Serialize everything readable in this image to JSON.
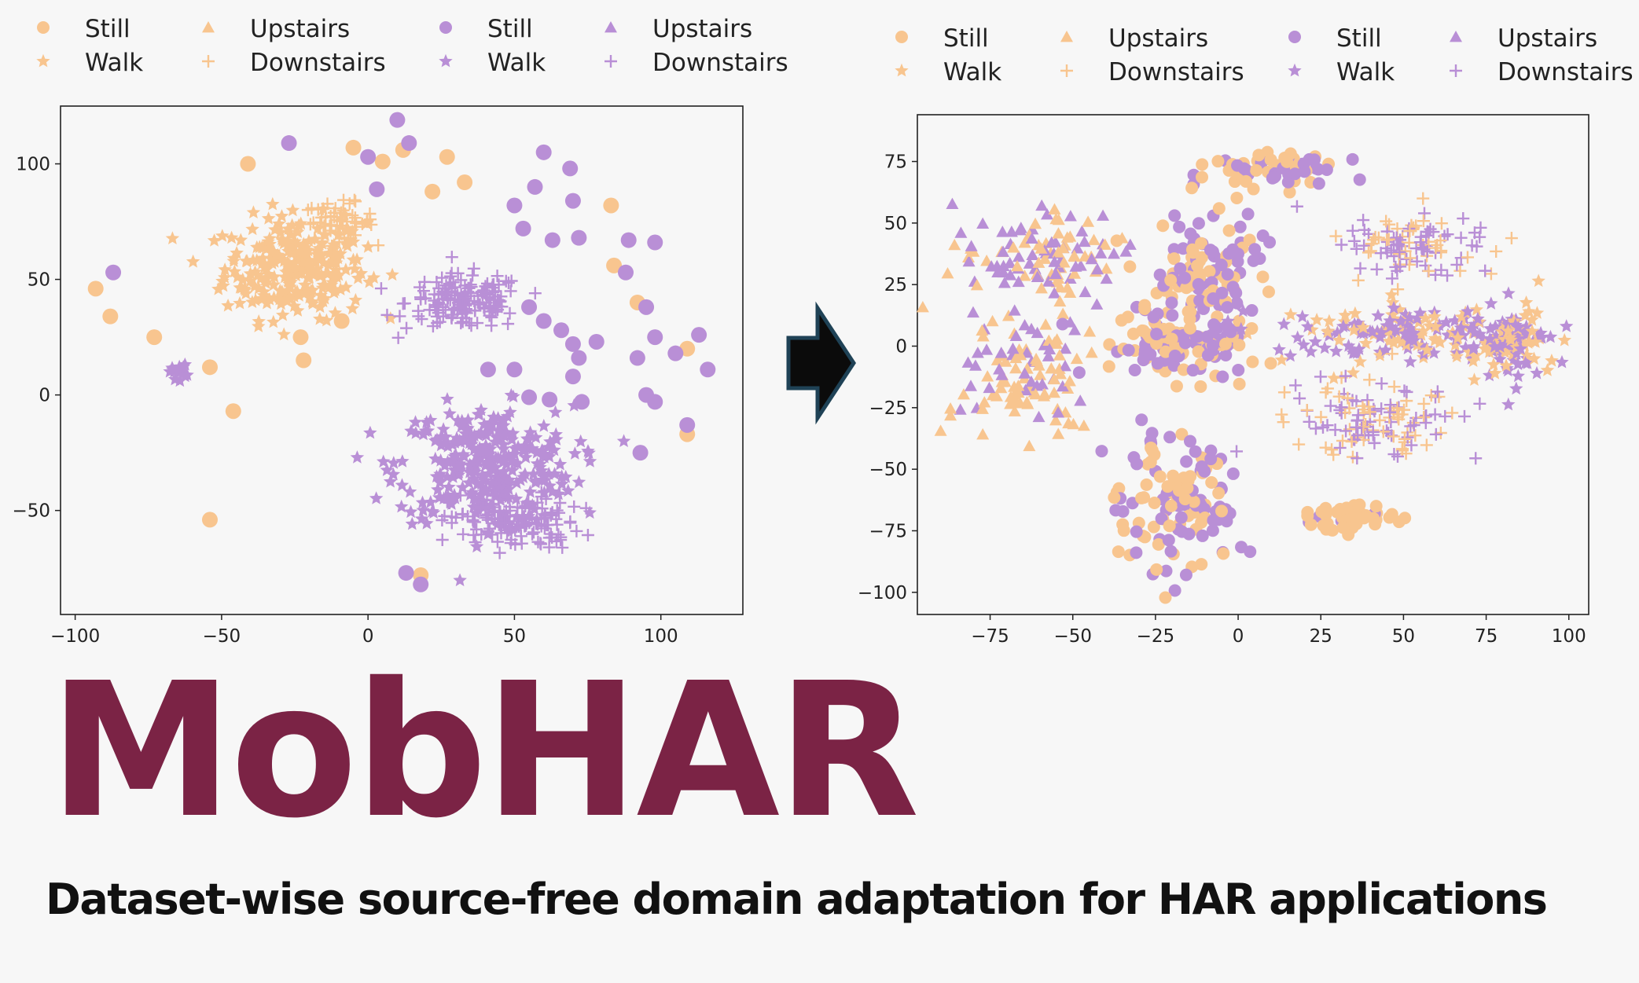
{
  "brand": {
    "title": "MobHAR",
    "subtitle": "Dataset-wise source-free domain adaptation for HAR applications",
    "title_color": "#7b2345",
    "arrow_icon": "right-arrow-icon"
  },
  "chart_data": [
    {
      "type": "scatter",
      "title": "",
      "xlabel": "",
      "ylabel": "",
      "xlim": [
        -105,
        128
      ],
      "ylim": [
        -95,
        125
      ],
      "xticks": [
        "−100",
        "−50",
        "0",
        "50",
        "100"
      ],
      "yticks": [
        "100",
        "50",
        "0",
        "−50"
      ],
      "xtick_values": [
        -100,
        -50,
        0,
        50,
        100
      ],
      "ytick_values": [
        100,
        50,
        0,
        -50
      ],
      "grid": false,
      "legend": {
        "placement": "top",
        "entries": [
          {
            "label": "Still",
            "marker": "circle",
            "color": "#f8c58f"
          },
          {
            "label": "Walk",
            "marker": "star",
            "color": "#f8c58f"
          },
          {
            "label": "Upstairs",
            "marker": "triangle",
            "color": "#f8c58f"
          },
          {
            "label": "Downstairs",
            "marker": "plus",
            "color": "#f8c58f"
          },
          {
            "label": "Still",
            "marker": "circle",
            "color": "#b98fd6"
          },
          {
            "label": "Walk",
            "marker": "star",
            "color": "#b98fd6"
          },
          {
            "label": "Upstairs",
            "marker": "triangle",
            "color": "#b98fd6"
          },
          {
            "label": "Downstairs",
            "marker": "plus",
            "color": "#b98fd6"
          }
        ]
      },
      "clusters": [
        {
          "color": "#f8c58f",
          "marker": "star",
          "x": -25,
          "y": 55,
          "rx": 24,
          "ry": 22,
          "n": 260
        },
        {
          "color": "#f8c58f",
          "marker": "plus",
          "x": -10,
          "y": 75,
          "rx": 12,
          "ry": 8,
          "n": 60
        },
        {
          "color": "#b98fd6",
          "marker": "plus",
          "x": 33,
          "y": 40,
          "rx": 20,
          "ry": 12,
          "n": 160
        },
        {
          "color": "#b98fd6",
          "marker": "star",
          "x": 40,
          "y": -30,
          "rx": 30,
          "ry": 25,
          "n": 300
        },
        {
          "color": "#b98fd6",
          "marker": "plus",
          "x": 50,
          "y": -55,
          "rx": 22,
          "ry": 12,
          "n": 140
        },
        {
          "color": "#b98fd6",
          "marker": "star",
          "x": -65,
          "y": 10,
          "rx": 3,
          "ry": 3,
          "n": 14
        }
      ],
      "points": [
        {
          "x": -93,
          "y": 46,
          "c": "#f8c58f",
          "m": "circle"
        },
        {
          "x": -88,
          "y": 34,
          "c": "#f8c58f",
          "m": "circle"
        },
        {
          "x": -73,
          "y": 25,
          "c": "#f8c58f",
          "m": "circle"
        },
        {
          "x": -54,
          "y": 12,
          "c": "#f8c58f",
          "m": "circle"
        },
        {
          "x": -46,
          "y": -7,
          "c": "#f8c58f",
          "m": "circle"
        },
        {
          "x": -41,
          "y": 100,
          "c": "#f8c58f",
          "m": "circle"
        },
        {
          "x": -54,
          "y": -54,
          "c": "#f8c58f",
          "m": "circle"
        },
        {
          "x": -23,
          "y": 25,
          "c": "#f8c58f",
          "m": "circle"
        },
        {
          "x": -22,
          "y": 15,
          "c": "#f8c58f",
          "m": "circle"
        },
        {
          "x": -9,
          "y": 32,
          "c": "#f8c58f",
          "m": "circle"
        },
        {
          "x": -5,
          "y": 107,
          "c": "#f8c58f",
          "m": "circle"
        },
        {
          "x": 5,
          "y": 101,
          "c": "#f8c58f",
          "m": "circle"
        },
        {
          "x": 12,
          "y": 106,
          "c": "#f8c58f",
          "m": "circle"
        },
        {
          "x": 22,
          "y": 88,
          "c": "#f8c58f",
          "m": "circle"
        },
        {
          "x": 27,
          "y": 103,
          "c": "#f8c58f",
          "m": "circle"
        },
        {
          "x": 33,
          "y": 92,
          "c": "#f8c58f",
          "m": "circle"
        },
        {
          "x": 83,
          "y": 82,
          "c": "#f8c58f",
          "m": "circle"
        },
        {
          "x": 84,
          "y": 56,
          "c": "#f8c58f",
          "m": "circle"
        },
        {
          "x": 92,
          "y": 40,
          "c": "#f8c58f",
          "m": "circle"
        },
        {
          "x": 109,
          "y": 20,
          "c": "#f8c58f",
          "m": "circle"
        },
        {
          "x": 109,
          "y": -17,
          "c": "#f8c58f",
          "m": "circle"
        },
        {
          "x": 18,
          "y": -78,
          "c": "#f8c58f",
          "m": "circle"
        },
        {
          "x": -27,
          "y": 109,
          "c": "#b98fd6",
          "m": "circle"
        },
        {
          "x": -87,
          "y": 53,
          "c": "#b98fd6",
          "m": "circle"
        },
        {
          "x": 10,
          "y": 119,
          "c": "#b98fd6",
          "m": "circle"
        },
        {
          "x": 14,
          "y": 109,
          "c": "#b98fd6",
          "m": "circle"
        },
        {
          "x": 0,
          "y": 103,
          "c": "#b98fd6",
          "m": "circle"
        },
        {
          "x": 3,
          "y": 89,
          "c": "#b98fd6",
          "m": "circle"
        },
        {
          "x": 60,
          "y": 105,
          "c": "#b98fd6",
          "m": "circle"
        },
        {
          "x": 69,
          "y": 98,
          "c": "#b98fd6",
          "m": "circle"
        },
        {
          "x": 57,
          "y": 90,
          "c": "#b98fd6",
          "m": "circle"
        },
        {
          "x": 50,
          "y": 82,
          "c": "#b98fd6",
          "m": "circle"
        },
        {
          "x": 70,
          "y": 84,
          "c": "#b98fd6",
          "m": "circle"
        },
        {
          "x": 53,
          "y": 72,
          "c": "#b98fd6",
          "m": "circle"
        },
        {
          "x": 63,
          "y": 67,
          "c": "#b98fd6",
          "m": "circle"
        },
        {
          "x": 72,
          "y": 68,
          "c": "#b98fd6",
          "m": "circle"
        },
        {
          "x": 89,
          "y": 67,
          "c": "#b98fd6",
          "m": "circle"
        },
        {
          "x": 98,
          "y": 66,
          "c": "#b98fd6",
          "m": "circle"
        },
        {
          "x": 88,
          "y": 53,
          "c": "#b98fd6",
          "m": "circle"
        },
        {
          "x": 95,
          "y": 38,
          "c": "#b98fd6",
          "m": "circle"
        },
        {
          "x": 98,
          "y": 25,
          "c": "#b98fd6",
          "m": "circle"
        },
        {
          "x": 113,
          "y": 26,
          "c": "#b98fd6",
          "m": "circle"
        },
        {
          "x": 105,
          "y": 18,
          "c": "#b98fd6",
          "m": "circle"
        },
        {
          "x": 116,
          "y": 11,
          "c": "#b98fd6",
          "m": "circle"
        },
        {
          "x": 78,
          "y": 23,
          "c": "#b98fd6",
          "m": "circle"
        },
        {
          "x": 72,
          "y": 16,
          "c": "#b98fd6",
          "m": "circle"
        },
        {
          "x": 92,
          "y": 16,
          "c": "#b98fd6",
          "m": "circle"
        },
        {
          "x": 60,
          "y": 32,
          "c": "#b98fd6",
          "m": "circle"
        },
        {
          "x": 66,
          "y": 28,
          "c": "#b98fd6",
          "m": "circle"
        },
        {
          "x": 70,
          "y": 22,
          "c": "#b98fd6",
          "m": "circle"
        },
        {
          "x": 55,
          "y": 38,
          "c": "#b98fd6",
          "m": "circle"
        },
        {
          "x": 41,
          "y": 11,
          "c": "#b98fd6",
          "m": "circle"
        },
        {
          "x": 50,
          "y": 11,
          "c": "#b98fd6",
          "m": "circle"
        },
        {
          "x": 70,
          "y": 8,
          "c": "#b98fd6",
          "m": "circle"
        },
        {
          "x": 55,
          "y": -1,
          "c": "#b98fd6",
          "m": "circle"
        },
        {
          "x": 62,
          "y": -2,
          "c": "#b98fd6",
          "m": "circle"
        },
        {
          "x": 73,
          "y": -3,
          "c": "#b98fd6",
          "m": "circle"
        },
        {
          "x": 95,
          "y": 0,
          "c": "#b98fd6",
          "m": "circle"
        },
        {
          "x": 98,
          "y": -3,
          "c": "#b98fd6",
          "m": "circle"
        },
        {
          "x": 109,
          "y": -13,
          "c": "#b98fd6",
          "m": "circle"
        },
        {
          "x": 93,
          "y": -25,
          "c": "#b98fd6",
          "m": "circle"
        },
        {
          "x": 18,
          "y": -82,
          "c": "#b98fd6",
          "m": "circle"
        },
        {
          "x": 13,
          "y": -77,
          "c": "#b98fd6",
          "m": "circle"
        }
      ]
    },
    {
      "type": "scatter",
      "title": "",
      "xlabel": "",
      "ylabel": "",
      "xlim": [
        -97,
        106
      ],
      "ylim": [
        -109,
        94
      ],
      "xticks": [
        "−75",
        "−50",
        "−25",
        "0",
        "25",
        "50",
        "75",
        "100"
      ],
      "yticks": [
        "75",
        "50",
        "25",
        "0",
        "−25",
        "−50",
        "−75",
        "−100"
      ],
      "xtick_values": [
        -75,
        -50,
        -25,
        0,
        25,
        50,
        75,
        100
      ],
      "ytick_values": [
        75,
        50,
        25,
        0,
        -25,
        -50,
        -75,
        -100
      ],
      "grid": false,
      "legend": {
        "placement": "top",
        "entries": [
          {
            "label": "Still",
            "marker": "circle",
            "color": "#f8c58f"
          },
          {
            "label": "Walk",
            "marker": "star",
            "color": "#f8c58f"
          },
          {
            "label": "Upstairs",
            "marker": "triangle",
            "color": "#f8c58f"
          },
          {
            "label": "Downstairs",
            "marker": "plus",
            "color": "#f8c58f"
          },
          {
            "label": "Still",
            "marker": "circle",
            "color": "#b98fd6"
          },
          {
            "label": "Walk",
            "marker": "star",
            "color": "#b98fd6"
          },
          {
            "label": "Upstairs",
            "marker": "triangle",
            "color": "#b98fd6"
          },
          {
            "label": "Downstairs",
            "marker": "plus",
            "color": "#b98fd6"
          }
        ]
      },
      "clusters": [
        {
          "color": "#f8c58f",
          "marker": "triangle",
          "x": -60,
          "y": 35,
          "rx": 25,
          "ry": 22,
          "n": 120,
          "mix": "#b98fd6",
          "mixRatio": 0.45
        },
        {
          "color": "#f8c58f",
          "marker": "triangle",
          "x": -65,
          "y": -12,
          "rx": 22,
          "ry": 22,
          "n": 110,
          "mix": "#b98fd6",
          "mixRatio": 0.4
        },
        {
          "color": "#f8c58f",
          "marker": "circle",
          "x": -10,
          "y": 25,
          "rx": 17,
          "ry": 30,
          "n": 140,
          "mix": "#b98fd6",
          "mixRatio": 0.5
        },
        {
          "color": "#f8c58f",
          "marker": "circle",
          "x": -20,
          "y": 0,
          "rx": 22,
          "ry": 14,
          "n": 100,
          "mix": "#b98fd6",
          "mixRatio": 0.45
        },
        {
          "color": "#f8c58f",
          "marker": "circle",
          "x": -18,
          "y": -65,
          "rx": 18,
          "ry": 28,
          "n": 130,
          "mix": "#b98fd6",
          "mixRatio": 0.45
        },
        {
          "color": "#f8c58f",
          "marker": "circle",
          "x": 12,
          "y": 73,
          "rx": 18,
          "ry": 8,
          "n": 60,
          "mix": "#b98fd6",
          "mixRatio": 0.5
        },
        {
          "color": "#f8c58f",
          "marker": "plus",
          "x": 55,
          "y": 42,
          "rx": 22,
          "ry": 14,
          "n": 110,
          "mix": "#b98fd6",
          "mixRatio": 0.55
        },
        {
          "color": "#f8c58f",
          "marker": "star",
          "x": 50,
          "y": 5,
          "rx": 40,
          "ry": 12,
          "n": 180,
          "mix": "#b98fd6",
          "mixRatio": 0.5
        },
        {
          "color": "#f8c58f",
          "marker": "star",
          "x": 83,
          "y": 0,
          "rx": 13,
          "ry": 16,
          "n": 90,
          "mix": "#b98fd6",
          "mixRatio": 0.5
        },
        {
          "color": "#f8c58f",
          "marker": "plus",
          "x": 42,
          "y": -30,
          "rx": 25,
          "ry": 15,
          "n": 130,
          "mix": "#b98fd6",
          "mixRatio": 0.5
        },
        {
          "color": "#f8c58f",
          "marker": "circle",
          "x": 32,
          "y": -70,
          "rx": 18,
          "ry": 6,
          "n": 50,
          "mix": "#b98fd6",
          "mixRatio": 0.2
        }
      ],
      "points": []
    }
  ]
}
